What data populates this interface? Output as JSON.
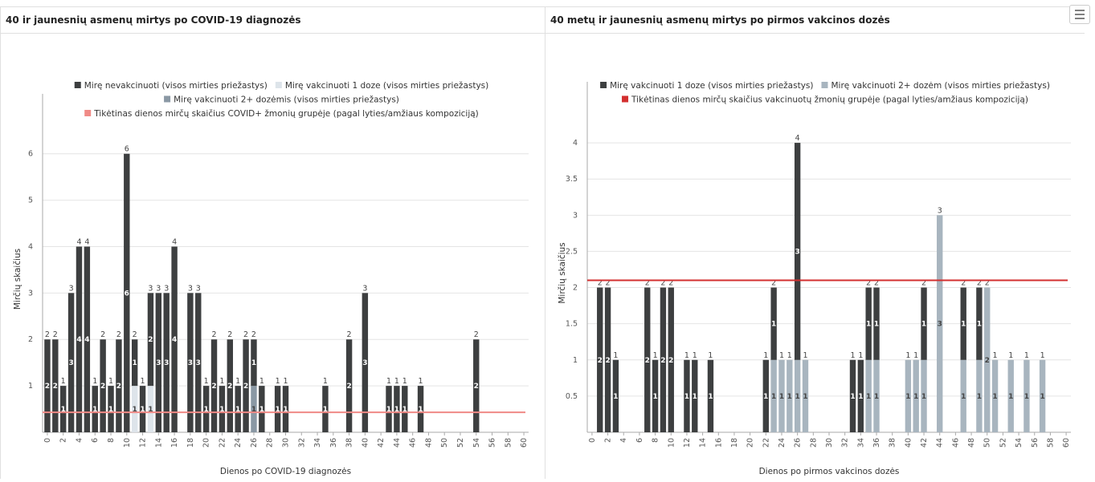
{
  "chart_data": [
    {
      "type": "bar",
      "stacked": true,
      "title": "40 ir jaunesnių asmenų mirtys po COVID-19 diagnozės",
      "xlabel": "Dienos po COVID-19 diagnozės",
      "ylabel": "Mirčių skaičius",
      "x": [
        0,
        1,
        2,
        3,
        4,
        5,
        6,
        7,
        8,
        9,
        10,
        11,
        12,
        13,
        14,
        15,
        16,
        18,
        19,
        20,
        21,
        22,
        23,
        24,
        25,
        26,
        27,
        29,
        30,
        35,
        38,
        40,
        43,
        44,
        45,
        47,
        54
      ],
      "series": [
        {
          "name": "Mirę nevakcinuoti (visos mirties priežastys)",
          "color": "#3d3f40",
          "values": [
            2,
            2,
            1,
            3,
            4,
            4,
            1,
            2,
            1,
            2,
            6,
            1,
            1,
            2,
            3,
            3,
            4,
            3,
            3,
            1,
            2,
            1,
            2,
            1,
            2,
            1,
            1,
            1,
            1,
            1,
            2,
            3,
            1,
            1,
            1,
            1,
            2
          ]
        },
        {
          "name": "Mirę vakcinuoti 1 doze (visos mirties priežastys)",
          "color": "#dde4ea",
          "values": [
            null,
            null,
            null,
            null,
            null,
            null,
            null,
            null,
            null,
            null,
            null,
            1,
            null,
            1,
            null,
            null,
            null,
            null,
            null,
            null,
            null,
            null,
            null,
            null,
            null,
            null,
            null,
            null,
            null,
            null,
            null,
            null,
            null,
            null,
            null,
            null,
            null
          ]
        },
        {
          "name": "Mirę vakcinuoti 2+ dozėmis (visos mirties priežastys)",
          "color": "#8a98a4",
          "values": [
            null,
            null,
            null,
            null,
            null,
            null,
            null,
            null,
            null,
            null,
            null,
            null,
            null,
            null,
            null,
            null,
            null,
            null,
            null,
            null,
            null,
            null,
            null,
            null,
            null,
            1,
            null,
            null,
            null,
            null,
            null,
            null,
            null,
            null,
            null,
            null,
            null
          ]
        }
      ],
      "totals": [
        2,
        2,
        1,
        3,
        4,
        4,
        1,
        2,
        1,
        2,
        6,
        2,
        1,
        3,
        3,
        3,
        4,
        3,
        3,
        1,
        2,
        1,
        2,
        1,
        2,
        2,
        1,
        1,
        1,
        1,
        2,
        3,
        1,
        1,
        1,
        1,
        2
      ],
      "reference_line": {
        "name": "Tikėtinas dienos mirčų skaičius COVID+ žmonių grupėje (pagal lyties/amžiaus kompoziciją)",
        "color": "#f08a86",
        "value": 0.43
      },
      "xlim": [
        -0.6,
        60.6
      ],
      "ylim": [
        0,
        6.6
      ],
      "xticks": [
        0,
        2,
        4,
        6,
        8,
        10,
        12,
        14,
        16,
        18,
        20,
        22,
        24,
        26,
        28,
        30,
        32,
        34,
        36,
        38,
        40,
        42,
        44,
        46,
        48,
        50,
        52,
        54,
        56,
        58,
        60
      ],
      "yticks": [
        1,
        2,
        3,
        4,
        5,
        6
      ],
      "grid": true
    },
    {
      "type": "bar",
      "stacked": true,
      "title": "40 metų ir jaunesnių asmenų mirtys po pirmos vakcinos dozės",
      "xlabel": "Dienos po pirmos vakcinos dozės",
      "ylabel": "Mirčių skaičius",
      "x": [
        1,
        2,
        3,
        7,
        8,
        9,
        10,
        12,
        13,
        15,
        22,
        23,
        24,
        25,
        26,
        27,
        33,
        34,
        35,
        36,
        40,
        41,
        42,
        44,
        47,
        49,
        50,
        51,
        53,
        55,
        57
      ],
      "series": [
        {
          "name": "Mirę vakcinuoti 1 doze (visos mirties priežastys)",
          "color": "#3d3f40",
          "values": [
            2,
            2,
            1,
            2,
            1,
            2,
            2,
            1,
            1,
            1,
            1,
            1,
            null,
            null,
            3,
            null,
            1,
            1,
            1,
            1,
            null,
            null,
            1,
            null,
            1,
            1,
            null,
            null,
            null,
            null,
            null
          ]
        },
        {
          "name": "Mirę vakcinuoti 2+ dozėm (visos mirties priežastys)",
          "color": "#a8b5bf",
          "values": [
            null,
            null,
            null,
            null,
            null,
            null,
            null,
            null,
            null,
            null,
            null,
            1,
            1,
            1,
            1,
            1,
            null,
            null,
            1,
            1,
            1,
            1,
            1,
            3,
            1,
            1,
            2,
            1,
            1,
            1,
            1
          ]
        }
      ],
      "totals": [
        2,
        2,
        1,
        2,
        1,
        2,
        2,
        1,
        1,
        1,
        1,
        2,
        1,
        1,
        4,
        1,
        1,
        1,
        2,
        2,
        1,
        1,
        2,
        3,
        2,
        2,
        2,
        1,
        1,
        1,
        1
      ],
      "reference_line": {
        "name": "Tikėtinas dienos mirčų skaičius vakcinuotų žmonių grupėje (pagal lyties/amžiaus kompoziciją)",
        "color": "#d32f2f",
        "value": 2.1
      },
      "xlim": [
        -0.6,
        60.6
      ],
      "ylim": [
        0,
        4.4
      ],
      "xticks": [
        0,
        2,
        4,
        6,
        8,
        10,
        12,
        14,
        16,
        18,
        20,
        22,
        24,
        26,
        28,
        30,
        32,
        34,
        36,
        38,
        40,
        42,
        44,
        46,
        48,
        50,
        52,
        54,
        56,
        58,
        60
      ],
      "yticks": [
        0.5,
        1,
        1.5,
        2,
        2.5,
        3,
        3.5,
        4
      ],
      "grid": true
    }
  ]
}
